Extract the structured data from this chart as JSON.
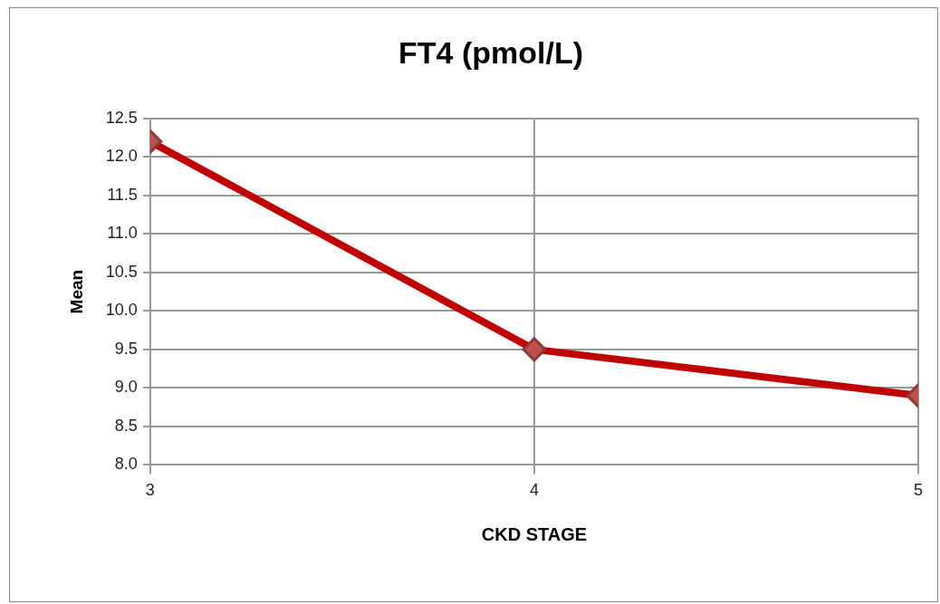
{
  "chart_data": {
    "type": "line",
    "title": "FT4 (pmol/L)",
    "xlabel": "CKD STAGE",
    "ylabel": "Mean",
    "x": [
      3,
      4,
      5
    ],
    "series": [
      {
        "color": "#c00000",
        "values": [
          12.2,
          9.5,
          8.9
        ]
      }
    ],
    "xlim": [
      3,
      5
    ],
    "xticks": [
      3,
      4,
      5
    ],
    "ylim": [
      8,
      12.5
    ],
    "yticks": [
      {
        "value": 8,
        "label": "8.0"
      },
      {
        "value": 8.5,
        "label": "8.5"
      },
      {
        "value": 9,
        "label": "9.0"
      },
      {
        "value": 9.5,
        "label": "9.5"
      },
      {
        "value": 10,
        "label": "10.0"
      },
      {
        "value": 10.5,
        "label": "10.5"
      },
      {
        "value": 11,
        "label": "11.0"
      },
      {
        "value": 11.5,
        "label": "11.5"
      },
      {
        "value": 12,
        "label": "12.0"
      },
      {
        "value": 12.5,
        "label": "12.5"
      }
    ],
    "grid": true,
    "legend": false,
    "marker": "diamond",
    "line_style": "solid"
  }
}
